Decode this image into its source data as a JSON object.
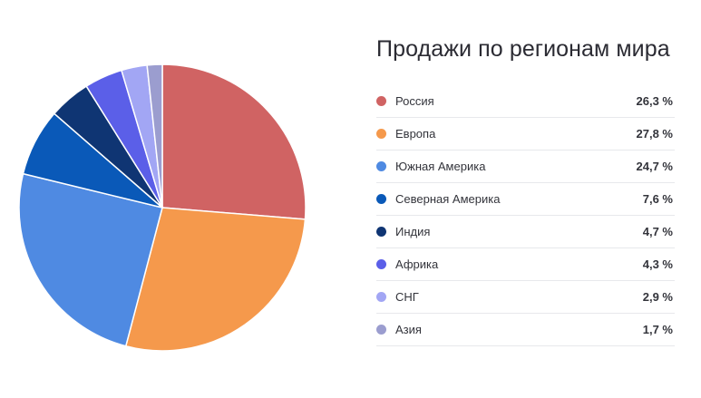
{
  "chart_data": {
    "type": "pie",
    "title": "Продажи по регионам мира",
    "categories": [
      "Россия",
      "Европа",
      "Южная Америка",
      "Северная Америка",
      "Индия",
      "Африка",
      "СНГ",
      "Азия"
    ],
    "values": [
      26.3,
      27.8,
      24.7,
      7.6,
      4.7,
      4.3,
      2.9,
      1.7
    ],
    "value_labels": [
      "26,3 %",
      "27,8 %",
      "24,7 %",
      "7,6 %",
      "4,7 %",
      "4,3 %",
      "2,9 %",
      "1,7 %"
    ],
    "colors": [
      "#d06363",
      "#f5994c",
      "#4f8ae2",
      "#0a59b8",
      "#0f3573",
      "#5b5fe8",
      "#a2a6f4",
      "#9b9dcf"
    ],
    "legend_position": "right"
  }
}
